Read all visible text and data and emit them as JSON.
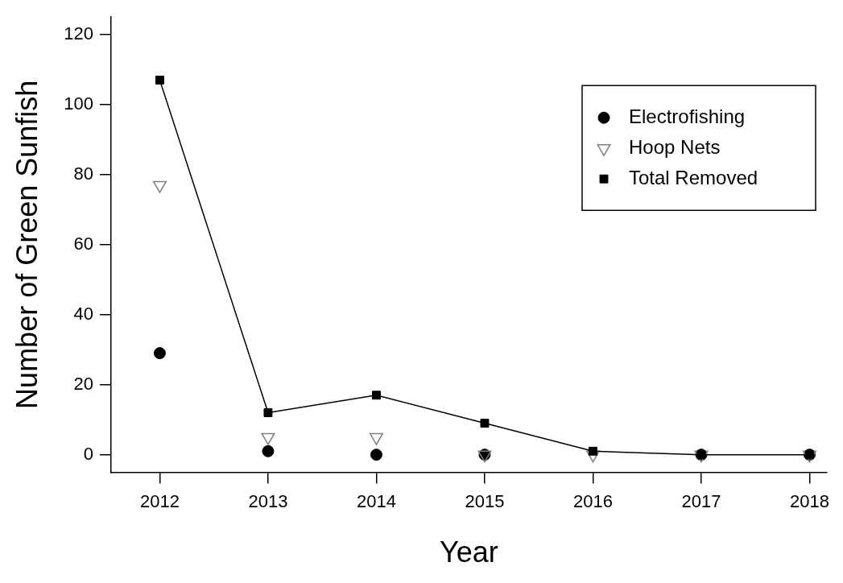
{
  "chart_data": {
    "type": "scatter",
    "xlabel": "Year",
    "ylabel": "Number of Green Sunfish",
    "x": [
      2012,
      2013,
      2014,
      2015,
      2016,
      2017,
      2018
    ],
    "series": [
      {
        "name": "Electrofishing",
        "type": "scatter",
        "marker": "circle",
        "color": "#000000",
        "values": [
          29,
          1,
          0,
          0,
          null,
          0,
          0
        ]
      },
      {
        "name": "Hoop Nets",
        "type": "scatter",
        "marker": "triangle",
        "color": "#808080",
        "values": [
          77,
          5,
          5,
          0,
          0,
          0,
          0
        ]
      },
      {
        "name": "Total Removed",
        "type": "line",
        "marker": "square",
        "color": "#000000",
        "values": [
          107,
          12,
          17,
          9,
          1,
          0,
          0
        ]
      }
    ],
    "xlim": [
      2011.55,
      2018.16
    ],
    "xticks": [
      2012,
      2013,
      2014,
      2015,
      2016,
      2017,
      2018
    ],
    "ylim": [
      -5,
      125
    ],
    "yticks": [
      0,
      20,
      40,
      60,
      80,
      100,
      120
    ],
    "grid": false,
    "legend": "top right"
  }
}
